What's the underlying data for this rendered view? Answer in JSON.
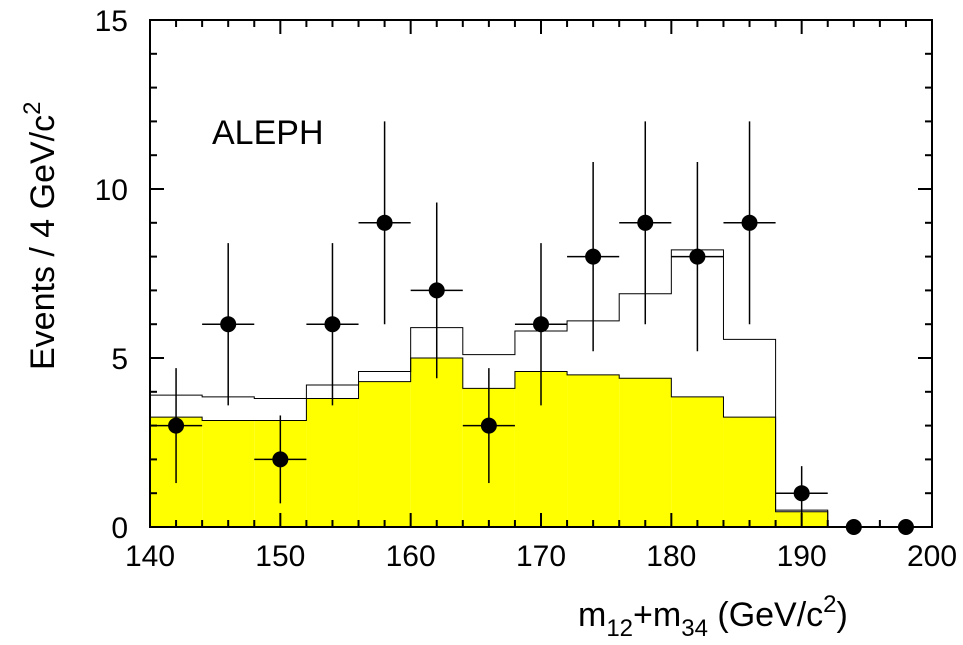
{
  "chart_data": {
    "type": "bar",
    "annotation": "ALEPH",
    "xlabel": {
      "main": "m",
      "sub1": "12",
      "mid": "+m",
      "sub2": "34",
      "unit": " (GeV/c",
      "sup": "2",
      "close": ")"
    },
    "ylabel": {
      "main": "Events / 4 GeV/c",
      "sup": "2"
    },
    "xlim": [
      140,
      200
    ],
    "ylim": [
      0,
      15
    ],
    "x_ticks": [
      140,
      150,
      160,
      170,
      180,
      190,
      200
    ],
    "y_ticks": [
      0,
      5,
      10,
      15
    ],
    "bin_edges": [
      140,
      144,
      148,
      152,
      156,
      160,
      164,
      168,
      172,
      176,
      180,
      184,
      188,
      192,
      196,
      200
    ],
    "series": [
      {
        "kind": "filled-histogram",
        "color": "#ffff00",
        "values": [
          3.25,
          3.15,
          3.15,
          3.8,
          4.3,
          5.0,
          4.1,
          4.6,
          4.5,
          4.4,
          3.85,
          3.25,
          0.45,
          0.0,
          0.0
        ]
      },
      {
        "kind": "outline-histogram",
        "color": "#000000",
        "values": [
          3.9,
          3.85,
          3.8,
          4.2,
          4.6,
          5.9,
          5.1,
          5.8,
          6.1,
          6.9,
          8.2,
          5.55,
          0.5,
          0.0,
          0.0
        ]
      },
      {
        "kind": "data-points",
        "color": "#000000",
        "x": [
          142,
          146,
          150,
          154,
          158,
          162,
          166,
          170,
          174,
          178,
          182,
          186,
          190,
          194,
          198
        ],
        "y": [
          3,
          6,
          2,
          6,
          9,
          7,
          3,
          6,
          8,
          9,
          8,
          9,
          1,
          0,
          0
        ],
        "yerr_low": [
          1.7,
          2.4,
          1.3,
          2.4,
          3.0,
          2.6,
          1.7,
          2.4,
          2.8,
          3.0,
          2.8,
          3.0,
          0.8,
          0,
          0
        ],
        "yerr_high": [
          1.7,
          2.4,
          1.3,
          2.4,
          3.0,
          2.6,
          1.7,
          2.4,
          2.8,
          3.0,
          2.8,
          3.0,
          0.8,
          0,
          0
        ],
        "xerr": 2
      }
    ]
  }
}
